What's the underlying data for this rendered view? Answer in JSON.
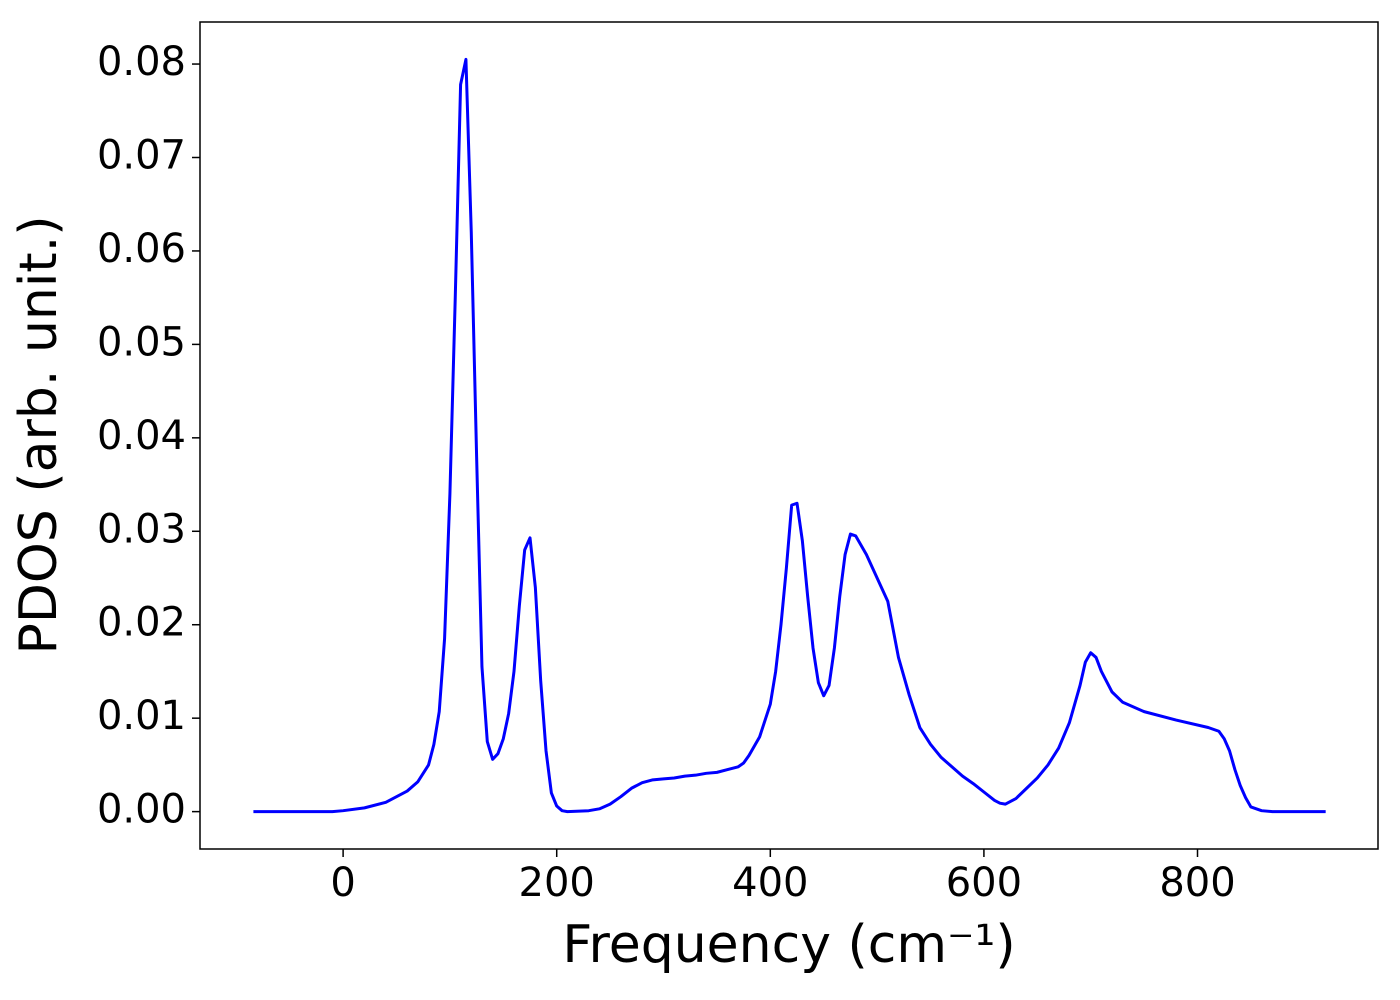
{
  "chart_data": {
    "type": "line",
    "xlabel": "Frequency (cm⁻¹)",
    "ylabel": "PDOS (arb. unit.)",
    "x": [
      -84,
      -40,
      -10,
      0,
      20,
      40,
      60,
      70,
      80,
      85,
      90,
      95,
      100,
      105,
      110,
      115,
      120,
      125,
      130,
      135,
      140,
      145,
      150,
      155,
      160,
      165,
      170,
      175,
      180,
      185,
      190,
      195,
      200,
      205,
      210,
      230,
      240,
      250,
      260,
      270,
      280,
      290,
      300,
      310,
      320,
      330,
      340,
      350,
      360,
      370,
      375,
      380,
      390,
      400,
      405,
      410,
      415,
      420,
      425,
      430,
      435,
      440,
      445,
      450,
      455,
      460,
      465,
      470,
      475,
      480,
      490,
      500,
      510,
      520,
      530,
      540,
      550,
      560,
      570,
      580,
      590,
      600,
      610,
      615,
      620,
      630,
      640,
      650,
      660,
      670,
      680,
      690,
      695,
      700,
      705,
      710,
      720,
      730,
      750,
      780,
      810,
      820,
      825,
      830,
      835,
      840,
      845,
      850,
      860,
      870,
      920
    ],
    "series": [
      {
        "name": "PDOS",
        "color": "#0000ff",
        "values": [
          0,
          0,
          0,
          0.0001,
          0.0004,
          0.001,
          0.0022,
          0.0032,
          0.005,
          0.0072,
          0.0107,
          0.0185,
          0.034,
          0.055,
          0.0778,
          0.0805,
          0.062,
          0.038,
          0.0155,
          0.0075,
          0.0056,
          0.0062,
          0.0078,
          0.0105,
          0.015,
          0.022,
          0.028,
          0.0293,
          0.024,
          0.014,
          0.0065,
          0.002,
          0.0006,
          0.0001,
          0,
          0.0001,
          0.0003,
          0.0008,
          0.0016,
          0.0025,
          0.0031,
          0.0034,
          0.0035,
          0.0036,
          0.0038,
          0.0039,
          0.0041,
          0.0042,
          0.0045,
          0.0048,
          0.0052,
          0.006,
          0.008,
          0.0115,
          0.015,
          0.02,
          0.026,
          0.0328,
          0.033,
          0.029,
          0.023,
          0.0175,
          0.0138,
          0.0124,
          0.0135,
          0.0175,
          0.023,
          0.0275,
          0.0297,
          0.0295,
          0.0275,
          0.025,
          0.0225,
          0.0165,
          0.0125,
          0.009,
          0.0072,
          0.0058,
          0.0048,
          0.0038,
          0.003,
          0.0021,
          0.0012,
          0.0009,
          0.0008,
          0.0014,
          0.0025,
          0.0036,
          0.005,
          0.0068,
          0.0095,
          0.0135,
          0.016,
          0.017,
          0.0165,
          0.015,
          0.0128,
          0.0117,
          0.0107,
          0.0098,
          0.009,
          0.0086,
          0.0078,
          0.0065,
          0.0045,
          0.0028,
          0.0015,
          0.0005,
          0.0001,
          0,
          0
        ]
      }
    ],
    "xlim": [
      -134,
      969
    ],
    "xticks": [
      0,
      200,
      400,
      600,
      800
    ],
    "ylim": [
      -0.004,
      0.0845
    ],
    "yticks": [
      {
        "value": 0,
        "label": "0.00"
      },
      0.01,
      0.02,
      0.03,
      0.04,
      0.05,
      0.06,
      0.07,
      0.08
    ],
    "grid": false
  }
}
